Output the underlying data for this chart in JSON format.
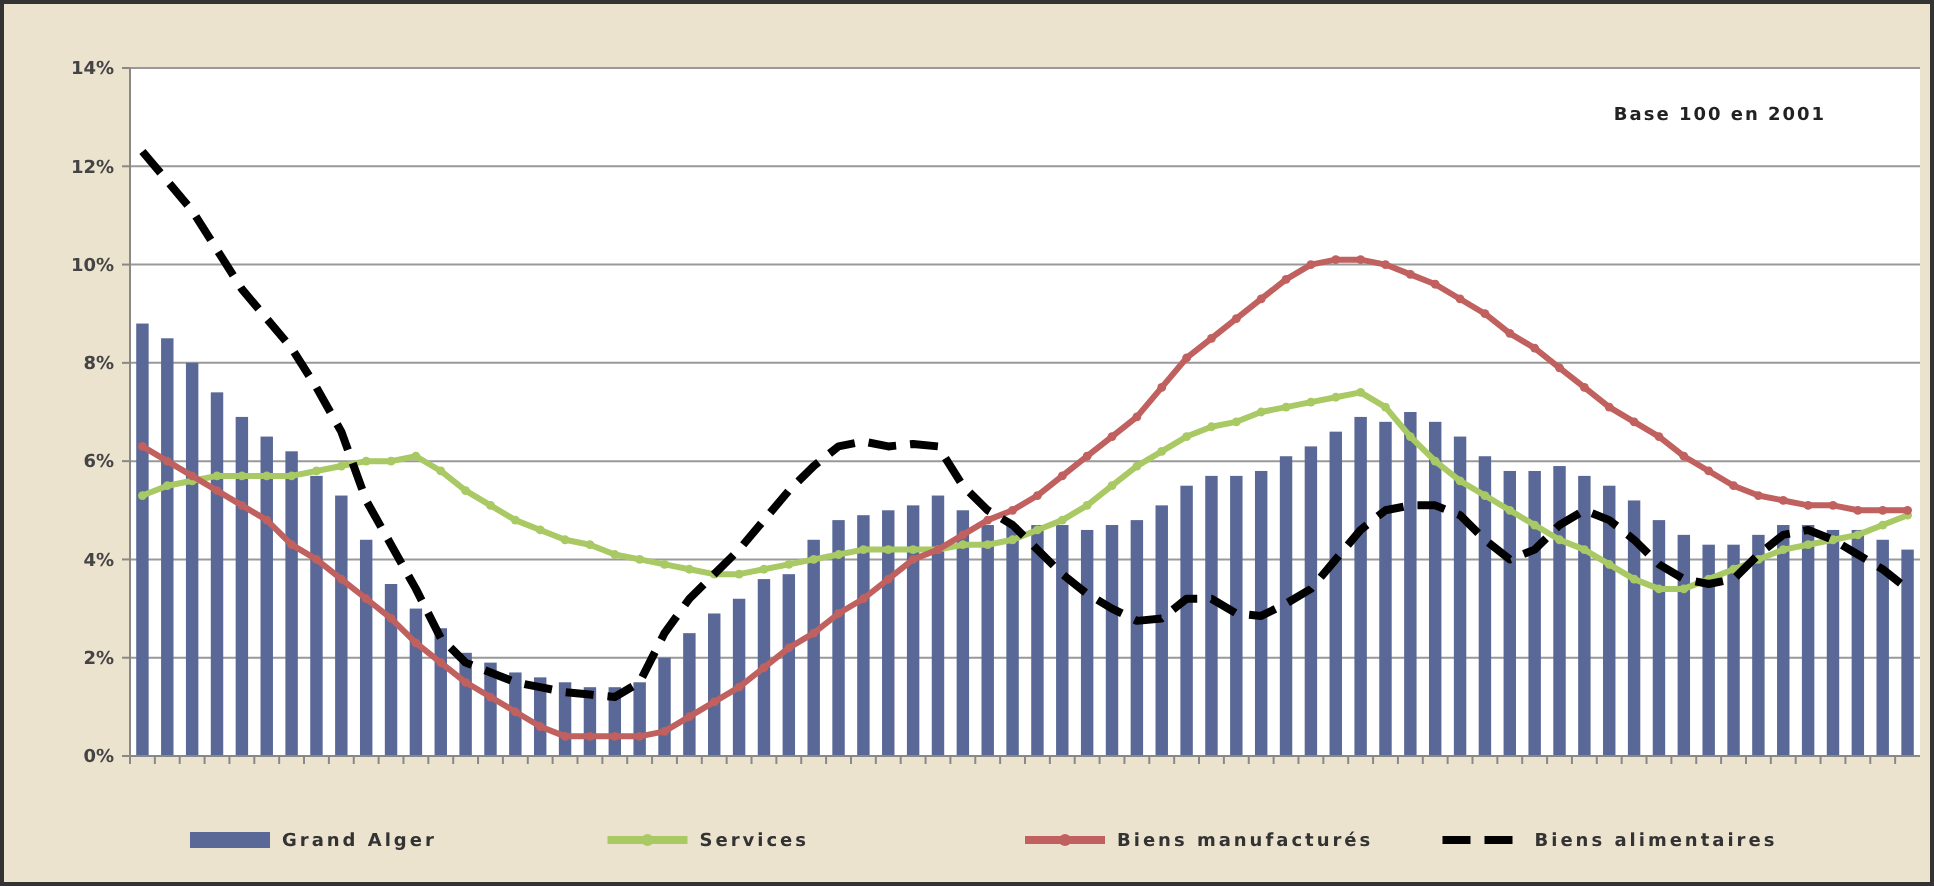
{
  "chart_data": {
    "type": "bar",
    "categories": [
      null,
      null,
      null,
      null,
      null,
      null,
      null,
      null,
      null,
      null,
      null,
      null,
      null,
      null,
      null,
      null,
      null,
      null,
      null,
      null,
      null,
      null,
      null,
      null,
      null,
      null,
      null,
      null,
      null,
      null,
      null,
      null,
      null,
      null,
      null,
      null,
      null,
      null,
      null,
      null,
      null,
      null,
      null,
      null,
      null,
      null,
      null,
      null,
      null,
      null,
      null,
      null,
      null,
      null,
      null,
      null,
      null,
      null,
      null,
      null,
      null,
      null,
      null,
      null,
      null,
      null,
      null,
      null,
      null,
      null,
      null,
      null
    ],
    "series": [
      {
        "name": "Grand Alger",
        "color": "#5a6897",
        "values": [
          8.8,
          8.5,
          8.0,
          7.4,
          6.9,
          6.5,
          6.2,
          5.7,
          5.3,
          4.4,
          3.5,
          3.0,
          2.6,
          2.1,
          1.9,
          1.7,
          1.6,
          1.5,
          1.4,
          1.4,
          1.5,
          2.0,
          2.5,
          2.9,
          3.2,
          3.6,
          3.7,
          4.4,
          4.8,
          4.9,
          5.0,
          5.1,
          5.3,
          5.0,
          4.7,
          4.7,
          4.7,
          4.7,
          4.6,
          4.7,
          4.8,
          5.1,
          5.5,
          5.7,
          5.7,
          5.8,
          6.1,
          6.3,
          6.6,
          6.9,
          6.8,
          7.0,
          6.8,
          6.5,
          6.1,
          5.8,
          5.8,
          5.9,
          5.7,
          5.5,
          5.2,
          4.8,
          4.5,
          4.3,
          4.3,
          4.5,
          4.7,
          4.7,
          4.6,
          4.6,
          4.4,
          4.2
        ]
      },
      {
        "name": "Services",
        "type": "line",
        "color": "#a9c964",
        "marker": "circle",
        "line_style": "solid",
        "values": [
          5.3,
          5.5,
          5.6,
          5.7,
          5.7,
          5.7,
          5.7,
          5.8,
          5.9,
          6.0,
          6.0,
          6.1,
          5.8,
          5.4,
          5.1,
          4.8,
          4.6,
          4.4,
          4.3,
          4.1,
          4.0,
          3.9,
          3.8,
          3.7,
          3.7,
          3.8,
          3.9,
          4.0,
          4.1,
          4.2,
          4.2,
          4.2,
          4.2,
          4.3,
          4.3,
          4.4,
          4.6,
          4.8,
          5.1,
          5.5,
          5.9,
          6.2,
          6.5,
          6.7,
          6.8,
          7.0,
          7.1,
          7.2,
          7.3,
          7.4,
          7.1,
          6.5,
          6.0,
          5.6,
          5.3,
          5.0,
          4.7,
          4.4,
          4.2,
          3.9,
          3.6,
          3.4,
          3.4,
          3.6,
          3.8,
          4.0,
          4.2,
          4.3,
          4.4,
          4.5,
          4.7,
          4.9
        ]
      },
      {
        "name": "Biens manufacturés",
        "type": "line",
        "color": "#c0605f",
        "marker": "circle",
        "line_style": "solid",
        "values": [
          6.3,
          6.0,
          5.7,
          5.4,
          5.1,
          4.8,
          4.3,
          4.0,
          3.6,
          3.2,
          2.8,
          2.3,
          1.9,
          1.5,
          1.2,
          0.9,
          0.6,
          0.4,
          0.4,
          0.4,
          0.4,
          0.5,
          0.8,
          1.1,
          1.4,
          1.8,
          2.2,
          2.5,
          2.9,
          3.2,
          3.6,
          4.0,
          4.2,
          4.5,
          4.8,
          5.0,
          5.3,
          5.7,
          6.1,
          6.5,
          6.9,
          7.5,
          8.1,
          8.5,
          8.9,
          9.3,
          9.7,
          10.0,
          10.1,
          10.1,
          10.0,
          9.8,
          9.6,
          9.3,
          9.0,
          8.6,
          8.3,
          7.9,
          7.5,
          7.1,
          6.8,
          6.5,
          6.1,
          5.8,
          5.5,
          5.3,
          5.2,
          5.1,
          5.1,
          5.0,
          5.0,
          5.0
        ]
      },
      {
        "name": "Biens alimentaires",
        "type": "line",
        "color": "#000000",
        "marker": "none",
        "line_style": "dashed",
        "values": [
          12.3,
          11.7,
          11.1,
          10.3,
          9.5,
          8.9,
          8.3,
          7.5,
          6.6,
          5.2,
          4.3,
          3.4,
          2.4,
          1.9,
          1.7,
          1.5,
          1.4,
          1.3,
          1.25,
          1.2,
          1.5,
          2.5,
          3.2,
          3.7,
          4.2,
          4.8,
          5.4,
          5.9,
          6.3,
          6.4,
          6.3,
          6.35,
          6.3,
          5.5,
          5.0,
          4.7,
          4.2,
          3.7,
          3.3,
          3.0,
          2.75,
          2.8,
          3.2,
          3.2,
          2.9,
          2.85,
          3.1,
          3.4,
          4.0,
          4.6,
          5.0,
          5.1,
          5.1,
          4.9,
          4.4,
          4.0,
          4.2,
          4.7,
          5.0,
          4.8,
          4.4,
          3.9,
          3.6,
          3.5,
          3.6,
          4.1,
          4.5,
          4.6,
          4.4,
          4.1,
          3.8,
          3.4
        ]
      }
    ],
    "ylim": [
      0,
      14
    ],
    "yticks": [
      {
        "value": 0,
        "label": "0%"
      },
      {
        "value": 2,
        "label": "2%"
      },
      {
        "value": 4,
        "label": "4%"
      },
      {
        "value": 6,
        "label": "6%"
      },
      {
        "value": 8,
        "label": "8%"
      },
      {
        "value": 10,
        "label": "10%"
      },
      {
        "value": 12,
        "label": "12%"
      },
      {
        "value": 14,
        "label": "14%"
      }
    ],
    "grid": "y",
    "legend": "bottom",
    "tick_labels": "y",
    "annotations": [
      {
        "text": "Base 100 en 2001"
      }
    ]
  }
}
